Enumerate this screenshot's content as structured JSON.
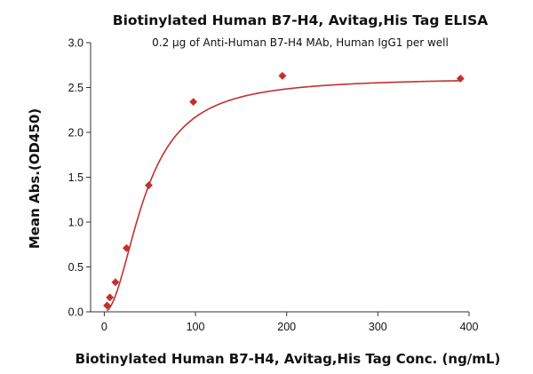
{
  "chart_data": {
    "type": "scatter",
    "title": "Biotinylated Human B7-H4, Avitag,His Tag ELISA",
    "subtitle": "0.2 μg of Anti-Human B7-H4 MAb, Human IgG1 per well",
    "xlabel": "Biotinylated Human B7-H4, Avitag,His Tag Conc. (ng/mL)",
    "ylabel": "Mean Abs.(OD450)",
    "xlim": [
      -15,
      400
    ],
    "ylim": [
      0,
      3.0
    ],
    "xticks": [
      0,
      100,
      200,
      300,
      400
    ],
    "yticks": [
      0.0,
      0.5,
      1.0,
      1.5,
      2.0,
      2.5,
      3.0
    ],
    "xtick_labels": [
      "0",
      "100",
      "200",
      "300",
      "400"
    ],
    "ytick_labels": [
      "0.0",
      "0.5",
      "1.0",
      "1.5",
      "2.0",
      "2.5",
      "3.0"
    ],
    "grid": false,
    "series": [
      {
        "marker": "diamond",
        "color": "#c0312f",
        "x": [
          3.05,
          6.1,
          12.2,
          24.4,
          48.8,
          97.7,
          195.3,
          390.6
        ],
        "y": [
          0.07,
          0.16,
          0.33,
          0.71,
          1.41,
          2.34,
          2.63,
          2.6
        ],
        "fit": {
          "type": "4PL",
          "color": "#c0312f",
          "bottom": 0.0,
          "top": 2.61,
          "ec50": 45.0,
          "hill": 2.0
        }
      }
    ]
  }
}
